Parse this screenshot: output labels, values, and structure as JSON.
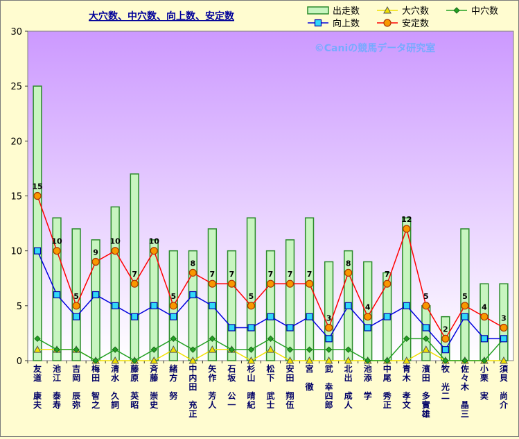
{
  "chart_data": {
    "type": "bar+line",
    "title": "大穴数、中穴数、向上数、安定数",
    "watermark": "©Caniの競馬データ研究室",
    "ylim": [
      0,
      30
    ],
    "yticks": [
      0,
      5,
      10,
      15,
      20,
      25,
      30
    ],
    "grid": false,
    "legend_position": "top-right",
    "categories": [
      "友道 康夫",
      "池江 泰寿",
      "吉岡 辰弥",
      "梅田 智之",
      "清水 久詞",
      "藤原 英昭",
      "斉藤 崇史",
      "緒方 努",
      "中内田 充正",
      "矢作 芳人",
      "石坂 公一",
      "杉山 晴紀",
      "松下 武士",
      "安田 翔伍",
      "宮 徹",
      "武 幸四郎",
      "北出 成人",
      "池添 学",
      "中尾 秀正",
      "青木 孝文",
      "濱田 多實雄",
      "牧 光二",
      "佐々木 晶三",
      "小栗 実",
      "須貝 尚介"
    ],
    "series": [
      {
        "name": "出走数",
        "kind": "bar",
        "values": [
          25,
          13,
          12,
          11,
          14,
          17,
          11,
          10,
          10,
          12,
          10,
          13,
          10,
          11,
          13,
          9,
          10,
          9,
          8,
          13,
          5,
          4,
          12,
          7,
          7
        ]
      },
      {
        "name": "大穴数",
        "kind": "line",
        "values": [
          1,
          1,
          1,
          0,
          0,
          0,
          0,
          1,
          0,
          1,
          1,
          0,
          1,
          0,
          0,
          0,
          0,
          0,
          0,
          0,
          1,
          0,
          0,
          0,
          0
        ]
      },
      {
        "name": "中穴数",
        "kind": "line",
        "values": [
          2,
          1,
          1,
          0,
          1,
          0,
          1,
          2,
          1,
          2,
          1,
          1,
          2,
          1,
          1,
          1,
          1,
          0,
          0,
          2,
          2,
          0,
          0,
          0,
          2
        ]
      },
      {
        "name": "向上数",
        "kind": "line",
        "values": [
          10,
          6,
          4,
          6,
          5,
          4,
          5,
          4,
          6,
          5,
          3,
          3,
          4,
          3,
          4,
          2,
          5,
          3,
          4,
          5,
          3,
          1,
          4,
          2,
          2
        ]
      },
      {
        "name": "安定数",
        "kind": "line",
        "values": [
          15,
          10,
          5,
          9,
          10,
          7,
          10,
          5,
          8,
          7,
          7,
          5,
          7,
          7,
          7,
          3,
          8,
          4,
          7,
          12,
          5,
          2,
          5,
          4,
          3
        ]
      }
    ],
    "colors": {
      "bar_fill": "#c8f5c0",
      "bar_stroke": "#2a8a2a",
      "daiana": "#f0e000",
      "chuana": "#22a022",
      "kojo": "#0000dd",
      "kojo_marker": "#30d8f8",
      "antei": "#ff0000",
      "antei_marker": "#f89800",
      "plot_top": "#cc99ff",
      "plot_bottom": "#ffffff",
      "title_color": "#000099",
      "watermark_color": "#77aaff",
      "label_color": "#000066"
    }
  }
}
